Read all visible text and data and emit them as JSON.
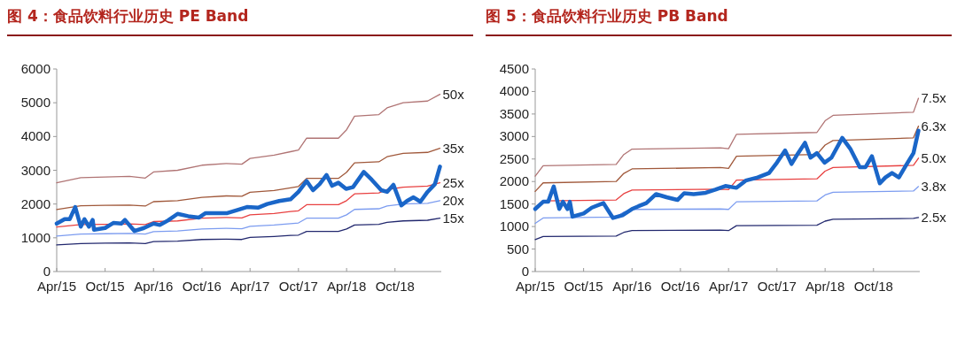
{
  "chart_data": [
    {
      "type": "line",
      "title": "图 4：食品饮料行业历史 PE Band",
      "xlim": [
        "2015-04-01",
        "2019-03-25"
      ],
      "xticks": [
        {
          "value": "2015-04-01",
          "label": "Apr/15"
        },
        {
          "value": "2015-10-01",
          "label": "Oct/15"
        },
        {
          "value": "2016-04-01",
          "label": "Apr/16"
        },
        {
          "value": "2016-10-01",
          "label": "Oct/16"
        },
        {
          "value": "2017-04-01",
          "label": "Apr/17"
        },
        {
          "value": "2017-10-01",
          "label": "Oct/17"
        },
        {
          "value": "2018-04-01",
          "label": "Apr/18"
        },
        {
          "value": "2018-10-01",
          "label": "Oct/18"
        }
      ],
      "ylim": [
        0,
        6000
      ],
      "yticks": [
        0,
        1000,
        2000,
        3000,
        4000,
        5000,
        6000
      ],
      "grid": false,
      "legend": false,
      "marker": "none",
      "line_style": "solid",
      "series": [
        {
          "name": "50x",
          "color": "#b07474",
          "x": [
            "2015-04-01",
            "2015-07-01",
            "2015-10-01",
            "2016-01-01",
            "2016-03-01",
            "2016-04-01",
            "2016-07-01",
            "2016-10-01",
            "2017-01-01",
            "2017-03-01",
            "2017-04-01",
            "2017-07-01",
            "2017-09-01",
            "2017-10-01",
            "2017-11-01",
            "2018-03-01",
            "2018-04-01",
            "2018-05-01",
            "2018-08-01",
            "2018-09-01",
            "2018-11-01",
            "2019-02-01",
            "2019-03-20"
          ],
          "values": [
            2630,
            2780,
            2800,
            2820,
            2770,
            2950,
            3000,
            3150,
            3200,
            3180,
            3350,
            3450,
            3550,
            3600,
            3950,
            3950,
            4200,
            4600,
            4650,
            4850,
            5000,
            5050,
            5250
          ]
        },
        {
          "name": "35x",
          "color": "#a0583a",
          "x": [
            "2015-04-01",
            "2015-07-01",
            "2015-10-01",
            "2016-01-01",
            "2016-03-01",
            "2016-04-01",
            "2016-07-01",
            "2016-10-01",
            "2017-01-01",
            "2017-03-01",
            "2017-04-01",
            "2017-07-01",
            "2017-09-01",
            "2017-10-01",
            "2017-11-01",
            "2018-03-01",
            "2018-04-01",
            "2018-05-01",
            "2018-08-01",
            "2018-09-01",
            "2018-11-01",
            "2019-02-01",
            "2019-03-20"
          ],
          "values": [
            1840,
            1950,
            1960,
            1970,
            1940,
            2070,
            2100,
            2200,
            2240,
            2230,
            2350,
            2400,
            2480,
            2520,
            2760,
            2760,
            2940,
            3220,
            3250,
            3400,
            3500,
            3530,
            3650
          ]
        },
        {
          "name": "25x",
          "color": "#e84040",
          "x": [
            "2015-04-01",
            "2015-07-01",
            "2015-10-01",
            "2016-01-01",
            "2016-03-01",
            "2016-04-01",
            "2016-07-01",
            "2016-10-01",
            "2017-01-01",
            "2017-03-01",
            "2017-04-01",
            "2017-07-01",
            "2017-09-01",
            "2017-10-01",
            "2017-11-01",
            "2018-03-01",
            "2018-04-01",
            "2018-05-01",
            "2018-08-01",
            "2018-09-01",
            "2018-11-01",
            "2019-02-01",
            "2019-03-20"
          ],
          "values": [
            1320,
            1390,
            1400,
            1410,
            1390,
            1480,
            1500,
            1580,
            1600,
            1590,
            1680,
            1720,
            1780,
            1800,
            1980,
            1980,
            2100,
            2300,
            2330,
            2430,
            2500,
            2530,
            2630
          ]
        },
        {
          "name": "20x",
          "color": "#7c9cf0",
          "x": [
            "2015-04-01",
            "2015-07-01",
            "2015-10-01",
            "2016-01-01",
            "2016-03-01",
            "2016-04-01",
            "2016-07-01",
            "2016-10-01",
            "2017-01-01",
            "2017-03-01",
            "2017-04-01",
            "2017-07-01",
            "2017-09-01",
            "2017-10-01",
            "2017-11-01",
            "2018-03-01",
            "2018-04-01",
            "2018-05-01",
            "2018-08-01",
            "2018-09-01",
            "2018-11-01",
            "2019-02-01",
            "2019-03-20"
          ],
          "values": [
            1050,
            1110,
            1120,
            1130,
            1110,
            1180,
            1200,
            1260,
            1280,
            1270,
            1340,
            1380,
            1420,
            1440,
            1580,
            1580,
            1680,
            1840,
            1860,
            1940,
            2000,
            2020,
            2100
          ]
        },
        {
          "name": "15x",
          "color": "#22286e",
          "x": [
            "2015-04-01",
            "2015-07-01",
            "2015-10-01",
            "2016-01-01",
            "2016-03-01",
            "2016-04-01",
            "2016-07-01",
            "2016-10-01",
            "2017-01-01",
            "2017-03-01",
            "2017-04-01",
            "2017-07-01",
            "2017-09-01",
            "2017-10-01",
            "2017-11-01",
            "2018-03-01",
            "2018-04-01",
            "2018-05-01",
            "2018-08-01",
            "2018-09-01",
            "2018-11-01",
            "2019-02-01",
            "2019-03-20"
          ],
          "values": [
            790,
            830,
            840,
            850,
            830,
            890,
            900,
            950,
            960,
            950,
            1010,
            1040,
            1070,
            1080,
            1190,
            1190,
            1260,
            1380,
            1400,
            1460,
            1500,
            1520,
            1580
          ]
        },
        {
          "color": "#1a66c8",
          "x": [
            "2015-04-01",
            "2015-05-01",
            "2015-05-20",
            "2015-06-10",
            "2015-07-01",
            "2015-07-15",
            "2015-08-01",
            "2015-08-15",
            "2015-08-20",
            "2015-10-01",
            "2015-11-01",
            "2015-12-01",
            "2015-12-15",
            "2016-01-20",
            "2016-02-25",
            "2016-04-01",
            "2016-04-25",
            "2016-05-25",
            "2016-07-01",
            "2016-08-10",
            "2016-09-20",
            "2016-10-15",
            "2016-11-20",
            "2017-01-05",
            "2017-02-10",
            "2017-03-20",
            "2017-05-01",
            "2017-06-05",
            "2017-07-20",
            "2017-09-01",
            "2017-10-01",
            "2017-11-01",
            "2017-11-25",
            "2017-12-20",
            "2018-01-15",
            "2018-02-05",
            "2018-03-01",
            "2018-03-30",
            "2018-04-25",
            "2018-06-05",
            "2018-07-05",
            "2018-08-10",
            "2018-09-01",
            "2018-09-25",
            "2018-10-25",
            "2018-11-15",
            "2018-12-10",
            "2019-01-05",
            "2019-02-01",
            "2019-03-01",
            "2019-03-20"
          ],
          "values": [
            1420,
            1550,
            1550,
            1910,
            1330,
            1550,
            1330,
            1530,
            1240,
            1290,
            1440,
            1420,
            1530,
            1200,
            1290,
            1420,
            1380,
            1510,
            1710,
            1640,
            1600,
            1730,
            1730,
            1730,
            1820,
            1910,
            1890,
            2000,
            2090,
            2140,
            2360,
            2680,
            2410,
            2590,
            2860,
            2540,
            2630,
            2450,
            2500,
            2950,
            2720,
            2410,
            2360,
            2570,
            1960,
            2090,
            2200,
            2070,
            2360,
            2590,
            3110
          ]
        }
      ]
    },
    {
      "type": "line",
      "title": "图 5：食品饮料行业历史 PB Band",
      "xlim": [
        "2015-04-01",
        "2019-03-25"
      ],
      "xticks": [
        {
          "value": "2015-04-01",
          "label": "Apr/15"
        },
        {
          "value": "2015-10-01",
          "label": "Oct/15"
        },
        {
          "value": "2016-04-01",
          "label": "Apr/16"
        },
        {
          "value": "2016-10-01",
          "label": "Oct/16"
        },
        {
          "value": "2017-04-01",
          "label": "Apr/17"
        },
        {
          "value": "2017-10-01",
          "label": "Oct/17"
        },
        {
          "value": "2018-04-01",
          "label": "Apr/18"
        },
        {
          "value": "2018-10-01",
          "label": "Oct/18"
        }
      ],
      "ylim": [
        0,
        4500
      ],
      "yticks": [
        0,
        500,
        1000,
        1500,
        2000,
        2500,
        3000,
        3500,
        4000,
        4500
      ],
      "grid": false,
      "legend": false,
      "marker": "none",
      "line_style": "solid",
      "series": [
        {
          "name": "7.5x",
          "color": "#b07474",
          "x": [
            "2015-04-01",
            "2015-05-01",
            "2016-02-01",
            "2016-03-01",
            "2016-04-01",
            "2017-03-01",
            "2017-04-01",
            "2017-05-01",
            "2018-03-01",
            "2018-04-01",
            "2018-05-01",
            "2019-03-01",
            "2019-03-20"
          ],
          "values": [
            2120,
            2350,
            2380,
            2600,
            2720,
            2750,
            2730,
            3050,
            3090,
            3350,
            3470,
            3540,
            3850
          ]
        },
        {
          "name": "6.3x",
          "color": "#a0583a",
          "x": [
            "2015-04-01",
            "2015-05-01",
            "2016-02-01",
            "2016-03-01",
            "2016-04-01",
            "2017-03-01",
            "2017-04-01",
            "2017-05-01",
            "2018-03-01",
            "2018-04-01",
            "2018-05-01",
            "2019-03-01",
            "2019-03-20"
          ],
          "values": [
            1780,
            1970,
            2000,
            2180,
            2280,
            2310,
            2290,
            2560,
            2600,
            2810,
            2910,
            2970,
            3230
          ]
        },
        {
          "name": "5.0x",
          "color": "#e84040",
          "x": [
            "2015-04-01",
            "2015-05-01",
            "2016-02-01",
            "2016-03-01",
            "2016-04-01",
            "2017-03-01",
            "2017-04-01",
            "2017-05-01",
            "2018-03-01",
            "2018-04-01",
            "2018-05-01",
            "2019-03-01",
            "2019-03-20"
          ],
          "values": [
            1410,
            1570,
            1590,
            1730,
            1810,
            1830,
            1820,
            2030,
            2060,
            2230,
            2310,
            2360,
            2520
          ]
        },
        {
          "name": "3.8x",
          "color": "#7c9cf0",
          "x": [
            "2015-04-01",
            "2015-05-01",
            "2016-02-01",
            "2016-03-01",
            "2016-04-01",
            "2017-03-01",
            "2017-04-01",
            "2017-05-01",
            "2018-03-01",
            "2018-04-01",
            "2018-05-01",
            "2019-03-01",
            "2019-03-20"
          ],
          "values": [
            1070,
            1190,
            1210,
            1320,
            1380,
            1390,
            1380,
            1550,
            1570,
            1700,
            1760,
            1790,
            1890
          ]
        },
        {
          "name": "2.5x",
          "color": "#22286e",
          "x": [
            "2015-04-01",
            "2015-05-01",
            "2016-02-01",
            "2016-03-01",
            "2016-04-01",
            "2017-03-01",
            "2017-04-01",
            "2017-05-01",
            "2018-03-01",
            "2018-04-01",
            "2018-05-01",
            "2019-03-01",
            "2019-03-20"
          ],
          "values": [
            710,
            780,
            790,
            870,
            910,
            920,
            910,
            1020,
            1030,
            1120,
            1160,
            1180,
            1200
          ]
        },
        {
          "color": "#1a66c8",
          "x": [
            "2015-04-01",
            "2015-05-01",
            "2015-05-20",
            "2015-06-10",
            "2015-07-01",
            "2015-07-15",
            "2015-08-01",
            "2015-08-10",
            "2015-08-20",
            "2015-10-01",
            "2015-11-01",
            "2015-12-15",
            "2016-01-20",
            "2016-02-25",
            "2016-04-01",
            "2016-04-25",
            "2016-05-25",
            "2016-07-01",
            "2016-08-10",
            "2016-09-20",
            "2016-10-15",
            "2016-11-20",
            "2017-01-05",
            "2017-02-10",
            "2017-03-20",
            "2017-05-01",
            "2017-06-05",
            "2017-07-20",
            "2017-09-01",
            "2017-10-01",
            "2017-11-01",
            "2017-11-25",
            "2017-12-20",
            "2018-01-15",
            "2018-02-05",
            "2018-03-01",
            "2018-03-30",
            "2018-04-25",
            "2018-06-05",
            "2018-07-05",
            "2018-08-10",
            "2018-09-01",
            "2018-09-25",
            "2018-10-25",
            "2018-11-15",
            "2018-12-10",
            "2019-01-05",
            "2019-02-01",
            "2019-03-01",
            "2019-03-20"
          ],
          "values": [
            1390,
            1550,
            1550,
            1890,
            1390,
            1550,
            1390,
            1550,
            1220,
            1290,
            1420,
            1520,
            1190,
            1250,
            1390,
            1450,
            1520,
            1720,
            1650,
            1590,
            1740,
            1720,
            1750,
            1820,
            1900,
            1860,
            2020,
            2090,
            2190,
            2420,
            2690,
            2390,
            2630,
            2860,
            2530,
            2630,
            2420,
            2530,
            2970,
            2730,
            2320,
            2320,
            2560,
            1960,
            2090,
            2190,
            2090,
            2360,
            2630,
            3130
          ]
        }
      ]
    }
  ]
}
